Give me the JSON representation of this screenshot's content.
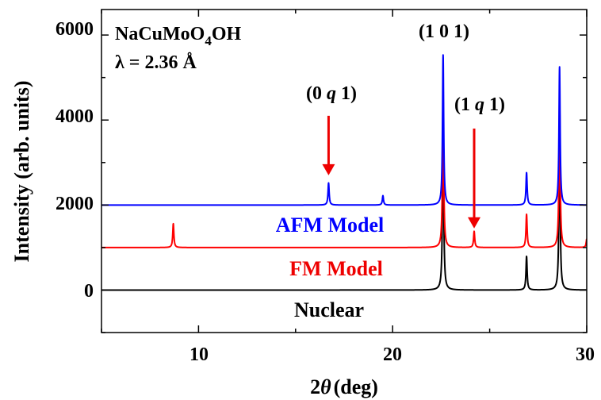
{
  "chart_data": {
    "type": "line",
    "xlabel_prefix": "2",
    "xlabel_symbol": "θ",
    "xlabel_unit": "(deg)",
    "ylabel": "Intensity (arb. units)",
    "xlim": [
      5,
      30
    ],
    "ylim": [
      -1000,
      6600
    ],
    "xticks": [
      10,
      20,
      30
    ],
    "yticks": [
      0,
      2000,
      4000,
      6000
    ],
    "compound": {
      "base": "NaCuMoO",
      "sub": "4",
      "tail": "OH"
    },
    "wavelength": "λ = 2.36 Å",
    "series": [
      {
        "name": "AFM Model",
        "color": "#0000ff",
        "offset": 2000,
        "peaks": [
          [
            16.7,
            520
          ],
          [
            19.5,
            220
          ],
          [
            22.6,
            3530
          ],
          [
            26.9,
            760
          ],
          [
            28.6,
            3250
          ]
        ]
      },
      {
        "name": "FM Model",
        "color": "#ff0000",
        "offset": 1000,
        "peaks": [
          [
            8.7,
            560
          ],
          [
            22.6,
            3700
          ],
          [
            24.2,
            380
          ],
          [
            26.9,
            780
          ],
          [
            28.6,
            3600
          ],
          [
            30.0,
            200
          ]
        ]
      },
      {
        "name": "Nuclear",
        "color": "#000000",
        "offset": 0,
        "peaks": [
          [
            22.6,
            4200
          ],
          [
            26.9,
            790
          ],
          [
            28.6,
            4000
          ]
        ]
      }
    ],
    "annotations": [
      {
        "id": "ann-101",
        "parts": [
          "(1 0 1)"
        ]
      },
      {
        "id": "ann-0q1",
        "parts": [
          "(0 ",
          "q",
          " 1)"
        ],
        "arrow_x": 16.7,
        "arrow_from": 4100,
        "arrow_to": 2700,
        "color": "#ee0000"
      },
      {
        "id": "ann-1q1",
        "parts": [
          "(1 ",
          "q",
          " 1)"
        ],
        "arrow_x": 24.2,
        "arrow_from": 3800,
        "arrow_to": 1450,
        "color": "#ee0000"
      }
    ]
  }
}
